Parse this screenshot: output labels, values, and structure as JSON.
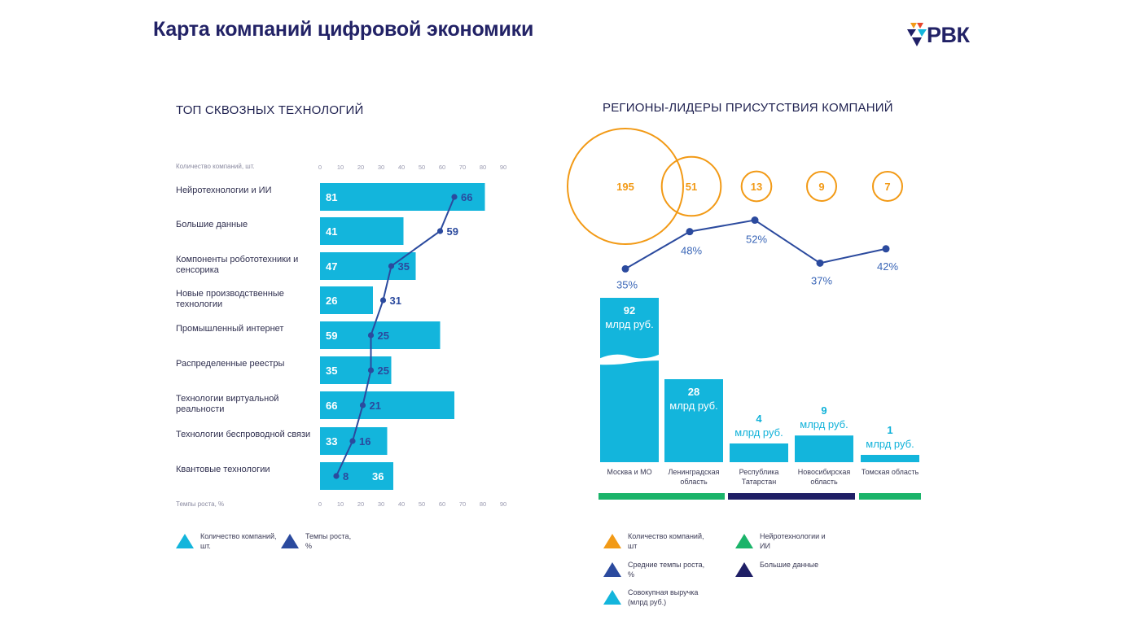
{
  "page": {
    "title": "Карта компаний цифровой экономики",
    "logo_text": "РВК"
  },
  "colors": {
    "bar": "#13b5dc",
    "line": "#2b4a9e",
    "circle": "#f29a16",
    "green": "#1bb46a",
    "navy": "#1f1f66",
    "title": "#222266"
  },
  "chart_data": [
    {
      "type": "bar",
      "title": "ТОП СКВОЗНЫХ ТЕХНОЛОГИЙ",
      "xlabel_top": "Количество компаний, шт.",
      "xlabel_bottom": "Темпы роста, %",
      "xlim": [
        0,
        90
      ],
      "ticks": [
        0,
        10,
        20,
        30,
        40,
        50,
        60,
        70,
        80,
        90
      ],
      "categories": [
        "Нейротехнологии и ИИ",
        "Большие данные",
        "Компоненты робототехники и сенсорика",
        "Новые производственные технологии",
        "Промышленный интернет",
        "Распределенные реестры",
        "Технологии виртуальной реальности",
        "Технологии беспроводной связи",
        "Квантовые технологии"
      ],
      "series": [
        {
          "name": "Количество компаний, шт.",
          "type": "bar",
          "values": [
            81,
            41,
            47,
            26,
            59,
            35,
            66,
            33,
            36
          ]
        },
        {
          "name": "Темпы роста, %",
          "type": "line",
          "values": [
            66,
            59,
            35,
            31,
            25,
            25,
            21,
            16,
            8
          ]
        }
      ],
      "legend": [
        {
          "label": "Количество компаний, шт.",
          "color": "#13b5dc"
        },
        {
          "label": "Темпы роста, %",
          "color": "#2b4a9e"
        }
      ]
    },
    {
      "type": "bar",
      "title": "РЕГИОНЫ-ЛИДЕРЫ ПРИСУТСТВИЯ КОМПАНИЙ",
      "categories": [
        "Москва и МО",
        "Ленинградская область",
        "Республика Татарстан",
        "Новосибирская область",
        "Томская область"
      ],
      "series": [
        {
          "name": "Количество компаний, шт",
          "type": "bubble",
          "values": [
            195,
            51,
            13,
            9,
            7
          ]
        },
        {
          "name": "Средние темпы роста, %",
          "type": "line",
          "values": [
            35,
            48,
            52,
            37,
            42
          ],
          "labels": [
            "35%",
            "48%",
            "52%",
            "37%",
            "42%"
          ]
        },
        {
          "name": "Совокупная выручка (млрд руб.)",
          "type": "bar",
          "values": [
            92,
            28,
            4,
            9,
            1
          ]
        }
      ],
      "revenue_unit": "млрд руб.",
      "category_groups": [
        {
          "name": "Нейротехнологии и ИИ",
          "color": "#1bb46a",
          "categories": [
            "Москва и МО",
            "Ленинградская область"
          ]
        },
        {
          "name": "Большие данные",
          "color": "#1f1f66",
          "categories": [
            "Республика Татарстан",
            "Новосибирская область"
          ]
        },
        {
          "name": "Нейротехнологии и ИИ",
          "color": "#1bb46a",
          "categories": [
            "Томская область"
          ]
        }
      ],
      "legend": [
        {
          "label": "Количество компаний, шт",
          "color": "#f29a16"
        },
        {
          "label": "Нейротехнологии и ИИ",
          "color": "#1bb46a"
        },
        {
          "label": "Средние темпы роста, %",
          "color": "#2b4a9e"
        },
        {
          "label": "Большие данные",
          "color": "#1f1f66"
        },
        {
          "label": "Совокупная выручка (млрд руб.)",
          "color": "#13b5dc"
        }
      ]
    }
  ]
}
